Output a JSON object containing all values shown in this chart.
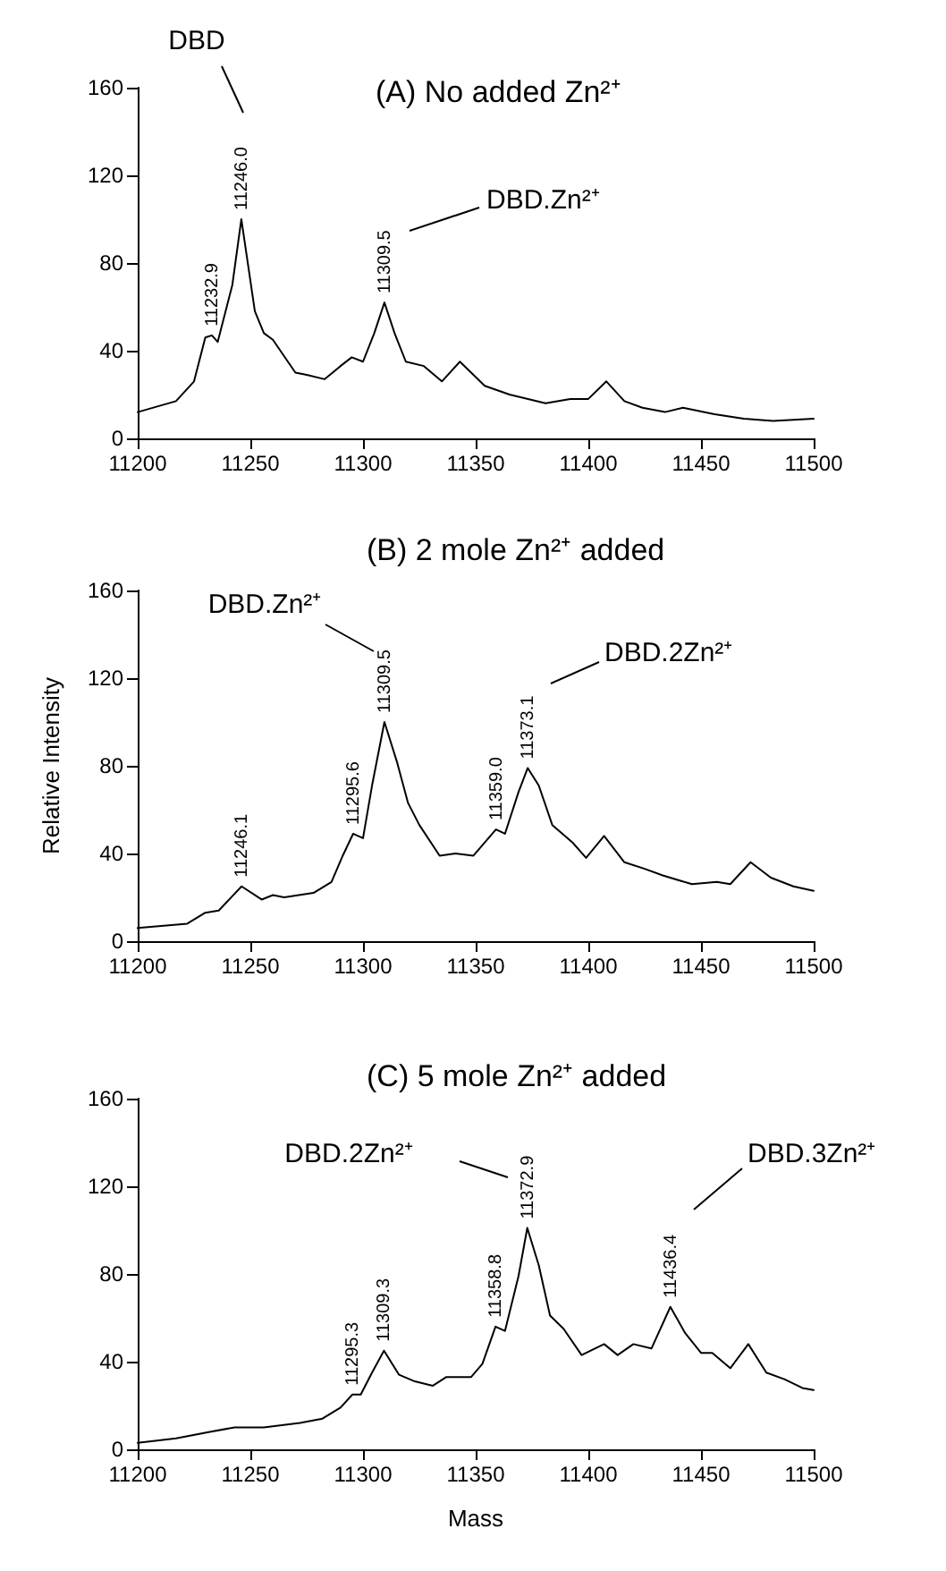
{
  "chart_data": [
    {
      "type": "line",
      "title": "(A) No added Zn²⁺",
      "xlim": [
        11200,
        11500
      ],
      "xticks": [
        11200,
        11250,
        11300,
        11350,
        11400,
        11450,
        11500
      ],
      "ylim": [
        0,
        160
      ],
      "yticks": [
        0,
        40,
        80,
        120,
        160
      ],
      "grid": false,
      "marker": "none",
      "line_style": "solid",
      "x": [
        11200,
        11217,
        11225,
        11230,
        11232.9,
        11235.5,
        11242,
        11246,
        11252,
        11256,
        11260,
        11264,
        11270,
        11275,
        11283,
        11290,
        11295,
        11300,
        11305,
        11309.5,
        11314,
        11319,
        11327,
        11335,
        11343,
        11354,
        11365,
        11381,
        11392,
        11400,
        11408,
        11416,
        11424,
        11434,
        11442,
        11456,
        11469,
        11482,
        11500
      ],
      "series": [
        {
          "color": "#000000",
          "values": [
            12,
            17,
            26,
            46,
            47,
            44,
            70,
            100,
            58,
            48,
            45,
            39,
            30,
            29,
            27,
            33,
            37,
            35,
            48,
            62,
            48,
            35,
            33,
            26,
            35,
            24,
            20,
            16,
            18,
            18,
            26,
            17,
            14,
            12,
            14,
            11,
            9,
            8,
            9
          ]
        }
      ],
      "annotations": [
        {
          "text": "11232.9",
          "x": 11232.9,
          "y": 47
        },
        {
          "text": "11246.0",
          "x": 11246,
          "y": 100
        },
        {
          "text": "11309.5",
          "x": 11309.5,
          "y": 62
        },
        "DBD",
        "DBD.Zn²⁺"
      ]
    },
    {
      "type": "line",
      "title": "(B) 2 mole Zn²⁺ added",
      "ylabel": "Relative Intensity",
      "xlim": [
        11200,
        11500
      ],
      "xticks": [
        11200,
        11250,
        11300,
        11350,
        11400,
        11450,
        11500
      ],
      "ylim": [
        0,
        160
      ],
      "yticks": [
        0,
        40,
        80,
        120,
        160
      ],
      "grid": false,
      "marker": "none",
      "line_style": "solid",
      "x": [
        11200,
        11222,
        11230,
        11236,
        11246.1,
        11255,
        11260,
        11265,
        11278,
        11286,
        11291,
        11295.6,
        11300,
        11304,
        11309.5,
        11315,
        11320,
        11325,
        11334,
        11341,
        11349,
        11359,
        11363,
        11369,
        11373.1,
        11378,
        11384,
        11393,
        11399,
        11407,
        11416,
        11425,
        11433,
        11446,
        11457,
        11463,
        11472,
        11481,
        11491,
        11500
      ],
      "series": [
        {
          "color": "#000000",
          "values": [
            6,
            8,
            13,
            14,
            25,
            19,
            21,
            20,
            22,
            27,
            39,
            49,
            47,
            71,
            100,
            82,
            63,
            53,
            39,
            40,
            39,
            51,
            49,
            68,
            79,
            71,
            53,
            45,
            38,
            48,
            36,
            33,
            30,
            26,
            27,
            26,
            36,
            29,
            25,
            23
          ]
        }
      ],
      "annotations": [
        {
          "text": "11246.1",
          "x": 11246.1,
          "y": 25
        },
        {
          "text": "11295.6",
          "x": 11295.6,
          "y": 49
        },
        {
          "text": "11309.5",
          "x": 11309.5,
          "y": 100
        },
        {
          "text": "11359.0",
          "x": 11359,
          "y": 51
        },
        {
          "text": "11373.1",
          "x": 11373.1,
          "y": 79
        },
        "DBD.Zn²⁺",
        "DBD.2Zn²⁺"
      ]
    },
    {
      "type": "line",
      "title": "(C) 5 mole Zn²⁺ added",
      "xlabel": "Mass",
      "xlim": [
        11200,
        11500
      ],
      "xticks": [
        11200,
        11250,
        11300,
        11350,
        11400,
        11450,
        11500
      ],
      "ylim": [
        0,
        160
      ],
      "yticks": [
        0,
        40,
        80,
        120,
        160
      ],
      "grid": false,
      "marker": "none",
      "line_style": "solid",
      "x": [
        11200,
        11217,
        11232,
        11243,
        11256,
        11272,
        11282,
        11290,
        11295.3,
        11299,
        11304,
        11309.3,
        11316,
        11323,
        11331,
        11337,
        11348,
        11353,
        11358.8,
        11363,
        11369,
        11372.9,
        11378,
        11383,
        11389,
        11397,
        11407,
        11413,
        11420,
        11428,
        11436.4,
        11443,
        11450,
        11455,
        11463,
        11471,
        11479,
        11487,
        11495,
        11500
      ],
      "series": [
        {
          "color": "#000000",
          "values": [
            3,
            5,
            8,
            10,
            10,
            12,
            14,
            19,
            25,
            25,
            35,
            45,
            34,
            31,
            29,
            33,
            33,
            39,
            56,
            54,
            79,
            101,
            84,
            61,
            55,
            43,
            48,
            43,
            48,
            46,
            65,
            53,
            44,
            44,
            37,
            48,
            35,
            32,
            28,
            27
          ]
        }
      ],
      "annotations": [
        {
          "text": "11295.3",
          "x": 11295.3,
          "y": 25
        },
        {
          "text": "11309.3",
          "x": 11309.3,
          "y": 45
        },
        {
          "text": "11358.8",
          "x": 11358.8,
          "y": 56
        },
        {
          "text": "11372.9",
          "x": 11372.9,
          "y": 101
        },
        {
          "text": "11436.4",
          "x": 11436.4,
          "y": 65
        },
        "DBD.2Zn²⁺",
        "DBD.3Zn²⁺"
      ]
    }
  ]
}
